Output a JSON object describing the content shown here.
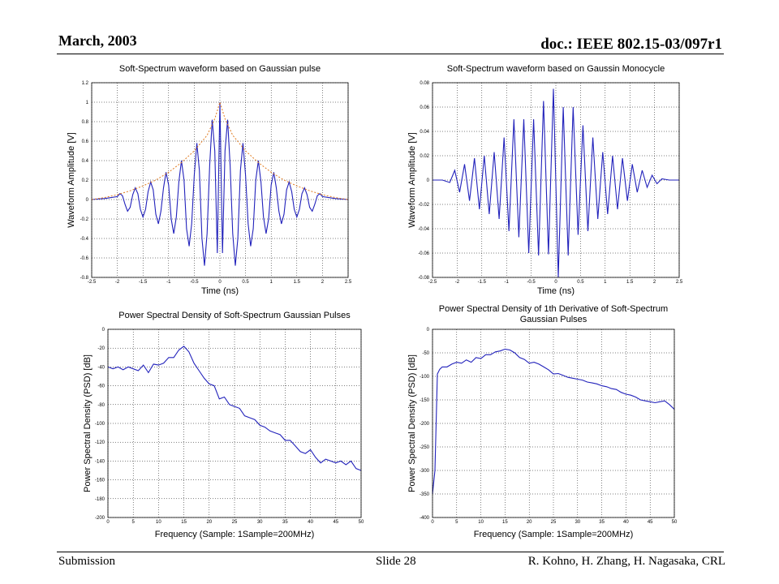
{
  "slide": {
    "date": "March, 2003",
    "doc_id": "doc.: IEEE 802.15-03/097r1",
    "footer_left": "Submission",
    "footer_center": "Slide 28",
    "footer_right": "R. Kohno, H. Zhang, H. Nagasaka, CRL"
  },
  "colors": {
    "signal": "#2222bb",
    "envelope": "#e07a1f",
    "grid": "#000000"
  },
  "chart_data": [
    {
      "type": "line",
      "title": "Soft-Spectrum waveform based on Gaussian pulse",
      "xlabel": "Time (ns)",
      "ylabel": "Waveform Amplitude [V]",
      "xlim": [
        -2.5,
        2.5
      ],
      "ylim": [
        -0.8,
        1.2
      ],
      "xticks": [
        -2.5,
        -2,
        -1.5,
        -1,
        -0.5,
        0,
        0.5,
        1,
        1.5,
        2,
        2.5
      ],
      "yticks": [
        -0.8,
        -0.6,
        -0.4,
        -0.2,
        0,
        0.2,
        0.4,
        0.6,
        0.8,
        1,
        1.2
      ],
      "xtick_labels": [
        "-2.5",
        "-2",
        "-1.5",
        "-1",
        "-0.5",
        "0",
        "0.5",
        "1",
        "1.5",
        "2",
        "2.5"
      ],
      "ytick_labels": [
        "-0.8",
        "-0.6",
        "-0.4",
        "-0.2",
        "0",
        "0.2",
        "0.4",
        "0.6",
        "0.8",
        "1",
        "1.2"
      ],
      "grid": true,
      "series": [
        {
          "kind": "signal",
          "x": [
            -2.5,
            -2.25,
            -2.0,
            -1.95,
            -1.9,
            -1.85,
            -1.8,
            -1.75,
            -1.7,
            -1.65,
            -1.6,
            -1.55,
            -1.5,
            -1.45,
            -1.4,
            -1.35,
            -1.3,
            -1.25,
            -1.2,
            -1.15,
            -1.1,
            -1.05,
            -1.0,
            -0.95,
            -0.9,
            -0.85,
            -0.8,
            -0.75,
            -0.7,
            -0.65,
            -0.6,
            -0.55,
            -0.5,
            -0.45,
            -0.4,
            -0.35,
            -0.3,
            -0.25,
            -0.2,
            -0.15,
            -0.1,
            -0.05,
            0.0,
            0.05,
            0.1,
            0.15,
            0.2,
            0.25,
            0.3,
            0.35,
            0.4,
            0.45,
            0.5,
            0.55,
            0.6,
            0.65,
            0.7,
            0.75,
            0.8,
            0.85,
            0.9,
            0.95,
            1.0,
            1.05,
            1.1,
            1.15,
            1.2,
            1.25,
            1.3,
            1.35,
            1.4,
            1.45,
            1.5,
            1.55,
            1.6,
            1.65,
            1.7,
            1.75,
            1.8,
            1.85,
            1.9,
            1.95,
            2.0,
            2.25,
            2.5
          ],
          "y": [
            0.0,
            0.01,
            0.03,
            0.06,
            0.04,
            -0.05,
            -0.12,
            -0.08,
            0.05,
            0.12,
            0.06,
            -0.1,
            -0.18,
            -0.1,
            0.08,
            0.18,
            0.1,
            -0.15,
            -0.25,
            -0.12,
            0.12,
            0.28,
            0.15,
            -0.2,
            -0.35,
            -0.18,
            0.18,
            0.4,
            0.2,
            -0.3,
            -0.48,
            -0.25,
            0.25,
            0.58,
            0.3,
            -0.4,
            -0.68,
            -0.35,
            0.35,
            0.82,
            0.5,
            -0.55,
            1.0,
            -0.55,
            0.5,
            0.82,
            0.35,
            -0.35,
            -0.68,
            -0.4,
            0.3,
            0.58,
            0.25,
            -0.25,
            -0.48,
            -0.3,
            0.2,
            0.4,
            0.18,
            -0.18,
            -0.35,
            -0.2,
            0.15,
            0.28,
            0.12,
            -0.12,
            -0.25,
            -0.15,
            0.1,
            0.18,
            0.08,
            -0.1,
            -0.18,
            -0.1,
            0.06,
            0.12,
            0.05,
            -0.08,
            -0.12,
            -0.05,
            0.04,
            0.06,
            0.03,
            0.01,
            0.0
          ]
        },
        {
          "kind": "envelope",
          "x": [
            -2.5,
            -2.25,
            -2.0,
            -1.75,
            -1.5,
            -1.25,
            -1.0,
            -0.75,
            -0.5,
            -0.25,
            -0.1,
            0.0,
            0.1,
            0.25,
            0.5,
            0.75,
            1.0,
            1.25,
            1.5,
            1.75,
            2.0,
            2.25,
            2.5
          ],
          "y": [
            0.0,
            0.02,
            0.05,
            0.09,
            0.14,
            0.2,
            0.28,
            0.38,
            0.5,
            0.66,
            0.83,
            1.0,
            0.83,
            0.66,
            0.5,
            0.38,
            0.28,
            0.2,
            0.14,
            0.09,
            0.05,
            0.02,
            0.0
          ]
        }
      ]
    },
    {
      "type": "line",
      "title": "Soft-Spectrum waveform based on Gaussin Monocycle",
      "xlabel": "Time (ns)",
      "ylabel": "Waveform Amplitude [V]",
      "xlim": [
        -2.5,
        2.5
      ],
      "ylim": [
        -0.08,
        0.08
      ],
      "xticks": [
        -2.5,
        -2,
        -1.5,
        -1,
        -0.5,
        0,
        0.5,
        1,
        1.5,
        2,
        2.5
      ],
      "yticks": [
        -0.08,
        -0.06,
        -0.04,
        -0.02,
        0,
        0.02,
        0.04,
        0.06,
        0.08
      ],
      "xtick_labels": [
        "-2.5",
        "-2",
        "-1.5",
        "-1",
        "-0.5",
        "0",
        "0.5",
        "1",
        "1.5",
        "2",
        "2.5"
      ],
      "ytick_labels": [
        "-0.08",
        "-0.06",
        "-0.04",
        "-0.02",
        "0",
        "0.02",
        "0.04",
        "0.06",
        "0.08"
      ],
      "grid": true,
      "series": [
        {
          "kind": "signal",
          "x": [
            -2.5,
            -2.3,
            -2.15,
            -2.05,
            -1.95,
            -1.85,
            -1.75,
            -1.65,
            -1.55,
            -1.45,
            -1.35,
            -1.25,
            -1.15,
            -1.05,
            -0.95,
            -0.85,
            -0.75,
            -0.65,
            -0.55,
            -0.45,
            -0.35,
            -0.25,
            -0.15,
            -0.05,
            0.05,
            0.15,
            0.25,
            0.35,
            0.45,
            0.55,
            0.65,
            0.75,
            0.85,
            0.95,
            1.05,
            1.15,
            1.25,
            1.35,
            1.45,
            1.55,
            1.65,
            1.75,
            1.85,
            1.95,
            2.05,
            2.15,
            2.3,
            2.5
          ],
          "y": [
            0.0,
            0.0,
            -0.002,
            0.008,
            -0.01,
            0.013,
            -0.017,
            0.018,
            -0.024,
            0.02,
            -0.028,
            0.023,
            -0.032,
            0.035,
            -0.042,
            0.05,
            -0.047,
            0.05,
            -0.06,
            0.05,
            -0.062,
            0.065,
            -0.061,
            0.075,
            -0.08,
            0.06,
            -0.062,
            0.06,
            -0.045,
            0.045,
            -0.042,
            0.035,
            -0.032,
            0.023,
            -0.028,
            0.02,
            -0.024,
            0.018,
            -0.017,
            0.013,
            -0.01,
            0.008,
            -0.006,
            0.004,
            -0.003,
            0.001,
            0.0,
            0.0
          ]
        }
      ]
    },
    {
      "type": "line",
      "title": "Power Spectral Density of Soft-Spectrum Gaussian Pulses",
      "xlabel": "Frequency (Sample: 1Sample=200MHz)",
      "ylabel": "Power Spectral Density (PSD) [dB]",
      "xlim": [
        0,
        50
      ],
      "ylim": [
        -200,
        0
      ],
      "xticks": [
        0,
        5,
        10,
        15,
        20,
        25,
        30,
        35,
        40,
        45,
        50
      ],
      "yticks": [
        -200,
        -180,
        -160,
        -140,
        -120,
        -100,
        -80,
        -60,
        -40,
        -20,
        0
      ],
      "xtick_labels": [
        "0",
        "5",
        "10",
        "15",
        "20",
        "25",
        "30",
        "35",
        "40",
        "45",
        "50"
      ],
      "ytick_labels": [
        "-200",
        "-180",
        "-160",
        "-140",
        "-120",
        "-100",
        "-80",
        "-60",
        "-40",
        "-20",
        "0"
      ],
      "grid": true,
      "series": [
        {
          "kind": "signal",
          "x": [
            0,
            1,
            2,
            3,
            4,
            5,
            6,
            7,
            8,
            9,
            10,
            11,
            12,
            13,
            14,
            15,
            16,
            17,
            18,
            19,
            20,
            21,
            22,
            23,
            24,
            25,
            26,
            27,
            28,
            29,
            30,
            31,
            32,
            33,
            34,
            35,
            36,
            37,
            38,
            39,
            40,
            41,
            42,
            43,
            44,
            45,
            46,
            47,
            48,
            49,
            50
          ],
          "y": [
            -40,
            -42,
            -40,
            -43,
            -40,
            -42,
            -44,
            -38,
            -46,
            -37,
            -38,
            -36,
            -30,
            -30,
            -22,
            -18,
            -24,
            -36,
            -44,
            -52,
            -58,
            -60,
            -74,
            -72,
            -80,
            -82,
            -84,
            -92,
            -94,
            -96,
            -102,
            -104,
            -108,
            -110,
            -112,
            -118,
            -118,
            -124,
            -130,
            -132,
            -128,
            -136,
            -142,
            -138,
            -140,
            -142,
            -140,
            -144,
            -140,
            -148,
            -150
          ]
        }
      ]
    },
    {
      "type": "line",
      "title": "Power Spectral Density of 1th Derivative of Soft-Spectrum Gaussian Pulses",
      "xlabel": "Frequency (Sample: 1Sample=200MHz)",
      "ylabel": "Power Spectral Density (PSD) [dB]",
      "xlim": [
        0,
        50
      ],
      "ylim": [
        -400,
        0
      ],
      "xticks": [
        0,
        5,
        10,
        15,
        20,
        25,
        30,
        35,
        40,
        45,
        50
      ],
      "yticks": [
        -400,
        -350,
        -300,
        -250,
        -200,
        -150,
        -100,
        -50,
        0
      ],
      "xtick_labels": [
        "0",
        "5",
        "10",
        "15",
        "20",
        "25",
        "30",
        "35",
        "40",
        "45",
        "50"
      ],
      "ytick_labels": [
        "-400",
        "-350",
        "-300",
        "-250",
        "-200",
        "-150",
        "-100",
        "-50",
        "0"
      ],
      "grid": true,
      "series": [
        {
          "kind": "signal",
          "x": [
            0,
            0.5,
            1,
            1.5,
            2,
            3,
            4,
            5,
            6,
            7,
            8,
            9,
            10,
            11,
            12,
            13,
            14,
            15,
            16,
            17,
            18,
            19,
            20,
            21,
            22,
            23,
            24,
            25,
            26,
            27,
            28,
            29,
            30,
            31,
            32,
            33,
            34,
            35,
            36,
            37,
            38,
            39,
            40,
            41,
            42,
            43,
            44,
            45,
            46,
            47,
            48,
            49,
            50
          ],
          "y": [
            -350,
            -300,
            -95,
            -85,
            -80,
            -80,
            -74,
            -70,
            -72,
            -65,
            -70,
            -60,
            -62,
            -54,
            -54,
            -48,
            -46,
            -42,
            -44,
            -50,
            -60,
            -64,
            -72,
            -70,
            -74,
            -80,
            -86,
            -95,
            -94,
            -98,
            -102,
            -104,
            -106,
            -108,
            -112,
            -114,
            -116,
            -120,
            -122,
            -126,
            -128,
            -134,
            -138,
            -140,
            -144,
            -150,
            -152,
            -154,
            -156,
            -154,
            -152,
            -160,
            -170
          ]
        }
      ]
    }
  ]
}
